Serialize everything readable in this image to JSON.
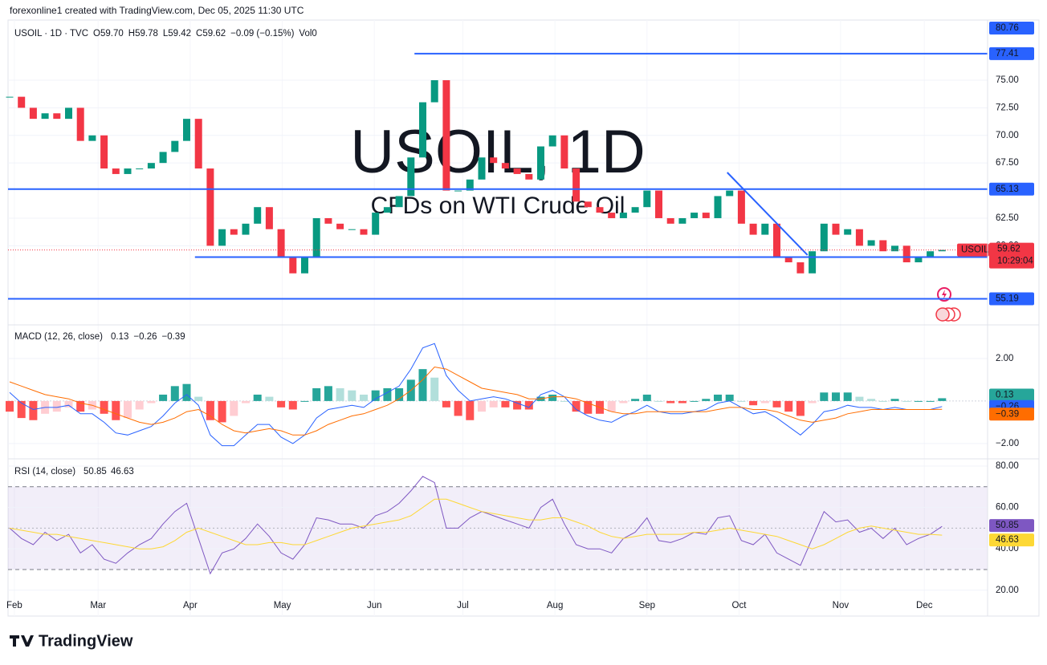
{
  "header": "forexonline1 created with TradingView.com, Dec 05, 2025 11:30 UTC",
  "logo": "TradingView",
  "chart_data": [
    {
      "type": "candlestick",
      "legend": [
        {
          "k": "USOIL · 1D · TVC",
          "v": ""
        },
        {
          "k": "O",
          "v": "59.70"
        },
        {
          "k": "H",
          "v": "59.78"
        },
        {
          "k": "L",
          "v": "59.42"
        },
        {
          "k": "C",
          "v": "59.62"
        },
        {
          "k": "",
          "v": "−0.09 (−0.15%)"
        },
        {
          "k": "Vol",
          "v": "0"
        }
      ],
      "watermark": [
        "USOIL, 1D",
        "CFDs on WTI Crude Oil"
      ],
      "closes": [
        73.5,
        72.5,
        71.5,
        72,
        71.5,
        72.5,
        69.5,
        70,
        67,
        66.5,
        67,
        67,
        67.5,
        68.5,
        69.5,
        71.5,
        67,
        60,
        61.5,
        61,
        62,
        63.5,
        61.5,
        59,
        57.5,
        59,
        62.5,
        62,
        61.5,
        61.5,
        61,
        63,
        63.5,
        64.5,
        68,
        73,
        75,
        65,
        65,
        66,
        68,
        67.5,
        67,
        66.5,
        66,
        69,
        70,
        67,
        64,
        63.5,
        63,
        62.5,
        63,
        63.5,
        65,
        62.5,
        62,
        62.5,
        63,
        62.5,
        64.5,
        65,
        62,
        61,
        62,
        59,
        58.5,
        57.5,
        59.5,
        62,
        61,
        61.5,
        60,
        60.5,
        59.5,
        60,
        58.5,
        59,
        59.5,
        59.62
      ],
      "up_color": "#089981",
      "down_color": "#f23645",
      "ylim": [
        52.83,
        80.45
      ],
      "yticks": [
        {
          "value": 60,
          "label": "60.00"
        },
        {
          "value": 62.5,
          "label": "62.50"
        },
        {
          "value": 67.5,
          "label": "67.50"
        },
        {
          "value": 70,
          "label": "70.00"
        },
        {
          "value": 72.5,
          "label": "72.50"
        },
        {
          "value": 75,
          "label": "75.00"
        }
      ],
      "xticks": [
        {
          "value": 0.4,
          "label": "Feb"
        },
        {
          "value": 7.5,
          "label": "Mar"
        },
        {
          "value": 15.3,
          "label": "Apr"
        },
        {
          "value": 23.1,
          "label": "May"
        },
        {
          "value": 30.9,
          "label": "Jun"
        },
        {
          "value": 38.4,
          "label": "Jul"
        },
        {
          "value": 46.2,
          "label": "Aug"
        },
        {
          "value": 54.0,
          "label": "Sep"
        },
        {
          "value": 61.8,
          "label": "Oct"
        },
        {
          "value": 70.4,
          "label": "Nov"
        },
        {
          "value": 77.5,
          "label": "Dec"
        }
      ],
      "axis_max_label": 80.76,
      "levels": [
        {
          "value": 77.41,
          "start": 34.3
        },
        {
          "value": 65.13
        },
        {
          "value": 58.97,
          "start": 15.7
        },
        {
          "value": 55.19
        }
      ],
      "level_color": "#2962ff",
      "trendline": {
        "from": [
          60.8,
          66.64
        ],
        "to": [
          67.6,
          59.16
        ]
      },
      "last": {
        "symbol": "USOIL",
        "value": 59.62,
        "countdown": "10:29:04"
      }
    },
    {
      "type": "macd",
      "title": "MACD (12, 26, close)",
      "last_labels": {
        "hist": "0.13",
        "macd": "−0.26",
        "signal": "−0.39"
      },
      "hist": [
        -0.5,
        -0.8,
        -0.9,
        -0.6,
        -0.5,
        -0.3,
        -0.5,
        -0.4,
        -0.6,
        -0.9,
        -0.8,
        -0.4,
        -0.1,
        0.3,
        0.7,
        0.8,
        0.2,
        -0.9,
        -1.0,
        -0.7,
        -0.1,
        0.3,
        0.2,
        -0.3,
        -0.4,
        0.0,
        0.6,
        0.7,
        0.6,
        0.5,
        0.3,
        0.5,
        0.6,
        0.6,
        1.0,
        1.5,
        1.1,
        -0.3,
        -0.7,
        -0.9,
        -0.5,
        -0.3,
        -0.3,
        -0.4,
        -0.4,
        0.2,
        0.3,
        0.0,
        -0.5,
        -0.6,
        -0.6,
        -0.5,
        -0.1,
        0.1,
        0.3,
        0.0,
        -0.1,
        -0.1,
        0.0,
        0.1,
        0.3,
        0.3,
        0.0,
        -0.2,
        -0.1,
        -0.3,
        -0.5,
        -0.7,
        -0.1,
        0.4,
        0.4,
        0.4,
        0.2,
        0.1,
        0.0,
        0.1,
        0.0,
        0.0,
        0.0,
        0.13
      ],
      "macd": [
        0.4,
        -0.1,
        -0.4,
        -0.3,
        -0.3,
        -0.2,
        -0.6,
        -0.6,
        -1.0,
        -1.5,
        -1.6,
        -1.4,
        -1.2,
        -0.7,
        -0.1,
        0.3,
        -0.2,
        -1.6,
        -2.1,
        -2.1,
        -1.6,
        -1.1,
        -1.1,
        -1.7,
        -2.0,
        -1.6,
        -0.8,
        -0.4,
        -0.3,
        -0.2,
        -0.3,
        0.1,
        0.4,
        0.7,
        1.5,
        2.5,
        2.7,
        1.2,
        0.5,
        0.0,
        0.1,
        0.2,
        0.1,
        -0.1,
        -0.3,
        0.3,
        0.5,
        0.2,
        -0.4,
        -0.7,
        -0.9,
        -1.0,
        -0.7,
        -0.5,
        -0.2,
        -0.5,
        -0.6,
        -0.6,
        -0.5,
        -0.4,
        -0.1,
        0.0,
        -0.3,
        -0.6,
        -0.5,
        -0.8,
        -1.2,
        -1.6,
        -1.1,
        -0.5,
        -0.4,
        -0.2,
        -0.3,
        -0.3,
        -0.4,
        -0.3,
        -0.4,
        -0.4,
        -0.4,
        -0.26
      ],
      "signal": [
        0.9,
        0.7,
        0.5,
        0.3,
        0.2,
        0.1,
        -0.1,
        -0.2,
        -0.4,
        -0.6,
        -0.8,
        -1.0,
        -1.1,
        -1.0,
        -0.8,
        -0.5,
        -0.4,
        -0.7,
        -1.1,
        -1.4,
        -1.5,
        -1.4,
        -1.3,
        -1.4,
        -1.6,
        -1.6,
        -1.4,
        -1.1,
        -0.9,
        -0.7,
        -0.6,
        -0.4,
        -0.2,
        0.1,
        0.5,
        1.0,
        1.6,
        1.5,
        1.2,
        0.9,
        0.6,
        0.5,
        0.4,
        0.3,
        0.1,
        0.1,
        0.2,
        0.2,
        0.1,
        -0.1,
        -0.3,
        -0.5,
        -0.6,
        -0.6,
        -0.5,
        -0.5,
        -0.5,
        -0.5,
        -0.5,
        -0.5,
        -0.4,
        -0.3,
        -0.3,
        -0.4,
        -0.4,
        -0.5,
        -0.7,
        -0.9,
        -1.0,
        -0.9,
        -0.8,
        -0.6,
        -0.5,
        -0.4,
        -0.4,
        -0.4,
        -0.4,
        -0.4,
        -0.4,
        -0.39
      ],
      "colors": {
        "macd": "#2962ff",
        "signal": "#ff6d00",
        "up": "#26a69a",
        "up_light": "#b2dfdb",
        "down": "#ff5252",
        "down_light": "#ffcdd2"
      },
      "ylim": [
        -2.72,
        3.58
      ],
      "yticks": [
        {
          "value": 2,
          "label": "2.00"
        },
        {
          "value": -2,
          "label": "−2.00"
        }
      ]
    },
    {
      "type": "rsi",
      "title": "RSI (14, close)",
      "rsi": [
        50,
        45,
        42,
        48,
        44,
        47,
        38,
        42,
        35,
        33,
        38,
        42,
        45,
        52,
        58,
        62,
        45,
        28,
        38,
        40,
        45,
        52,
        46,
        38,
        35,
        42,
        55,
        54,
        52,
        52,
        50,
        56,
        58,
        62,
        68,
        75,
        72,
        50,
        50,
        55,
        58,
        56,
        54,
        52,
        50,
        60,
        64,
        52,
        42,
        40,
        40,
        38,
        45,
        48,
        55,
        44,
        43,
        45,
        48,
        47,
        55,
        56,
        44,
        42,
        47,
        38,
        35,
        32,
        45,
        58,
        53,
        54,
        48,
        50,
        45,
        50,
        42,
        45,
        47,
        50.85
      ],
      "ma": [
        50,
        49,
        48,
        47,
        47,
        46,
        45,
        44,
        43,
        42,
        41,
        40,
        40,
        41,
        44,
        48,
        50,
        48,
        46,
        44,
        42,
        42,
        43,
        43,
        42,
        42,
        44,
        46,
        48,
        50,
        51,
        52,
        53,
        54,
        56,
        60,
        64,
        64,
        62,
        60,
        58,
        57,
        56,
        55,
        54,
        54,
        55,
        55,
        53,
        51,
        48,
        46,
        45,
        46,
        47,
        47,
        47,
        47,
        48,
        48,
        49,
        50,
        49,
        48,
        47,
        46,
        44,
        42,
        40,
        42,
        45,
        48,
        50,
        51,
        50,
        49,
        48,
        47,
        47,
        46.63
      ],
      "colors": {
        "rsi": "#7e57c2",
        "ma": "#fdd835"
      },
      "bands": [
        70,
        30
      ],
      "ylim": [
        7.5,
        83.1
      ],
      "yticks": [
        {
          "value": 80,
          "label": "80.00"
        },
        {
          "value": 60,
          "label": "60.00"
        },
        {
          "value": 40,
          "label": "40.00"
        },
        {
          "value": 20,
          "label": "20.00"
        }
      ]
    }
  ]
}
